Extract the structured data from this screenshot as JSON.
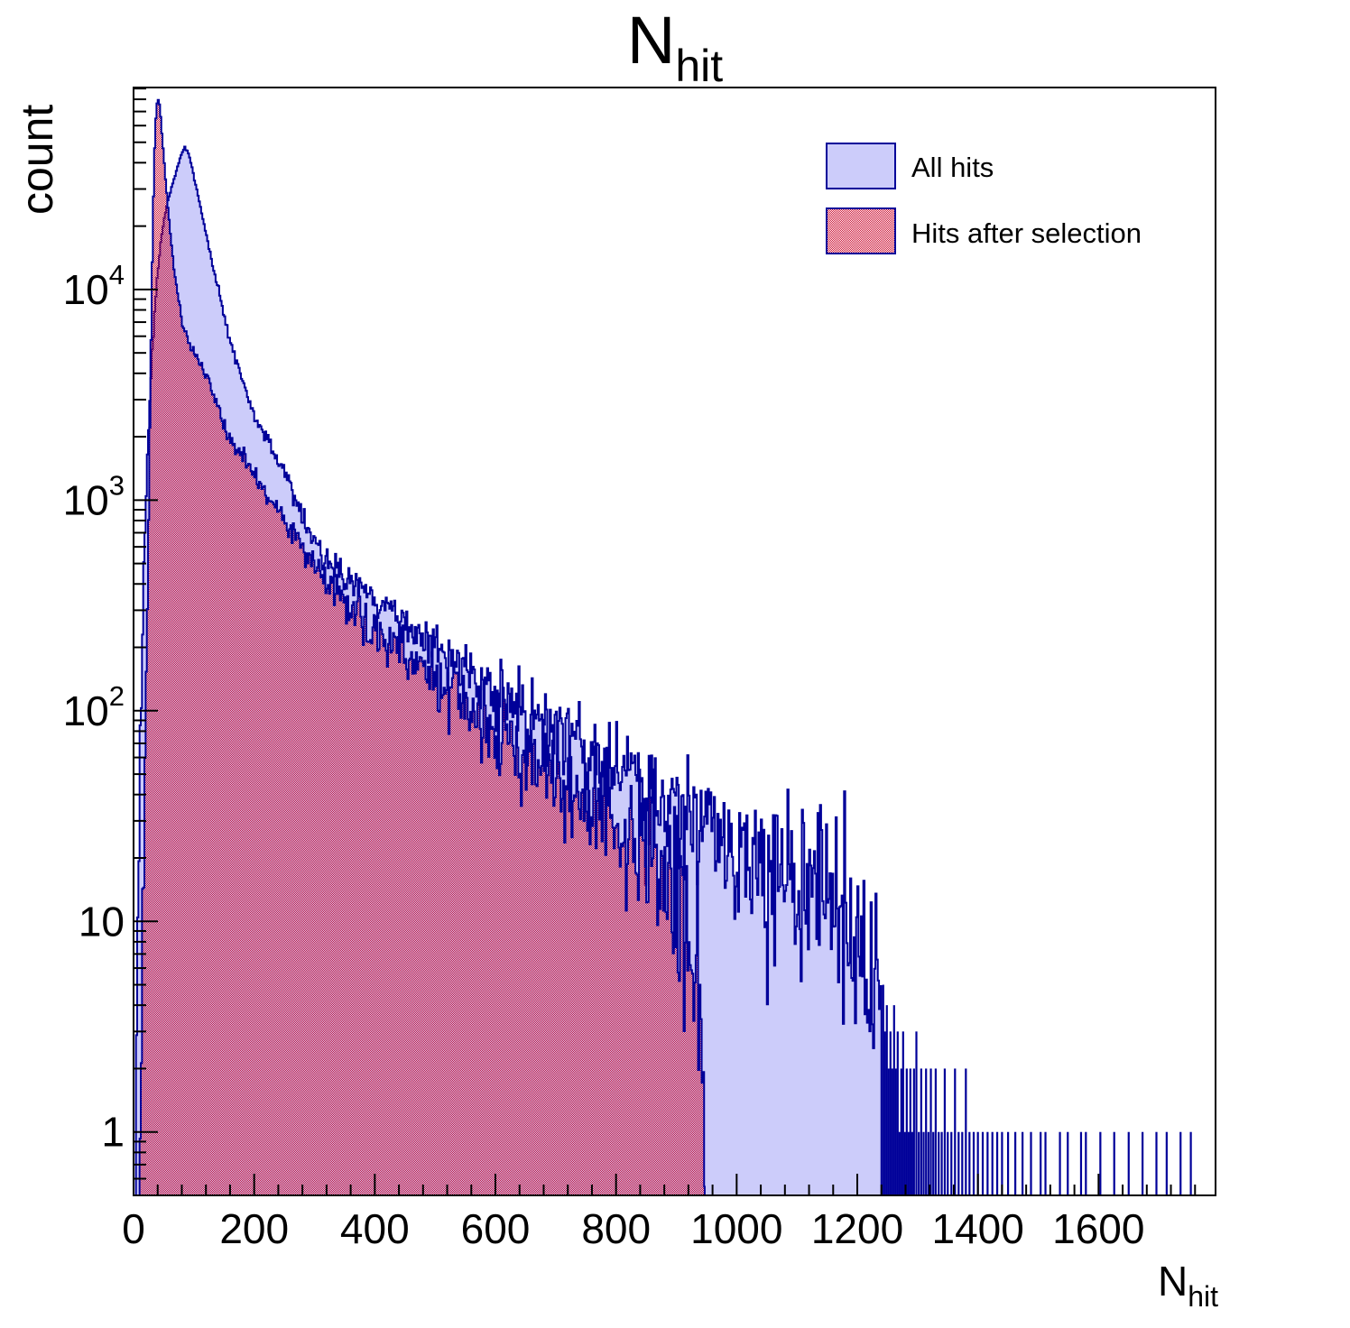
{
  "title": {
    "main": "N",
    "sub": "hit"
  },
  "axes": {
    "x": {
      "title_main": "N",
      "title_sub": "hit"
    },
    "y": {
      "title": "count"
    }
  },
  "legend": {
    "items": [
      {
        "label": "All hits",
        "style": "solid"
      },
      {
        "label": "Hits after selection",
        "style": "checker"
      }
    ]
  },
  "colors": {
    "outline_navy": "#000099",
    "all_hits_fill": "#ccccfa",
    "selection_red": "#cc1034",
    "axis_black": "#000000"
  },
  "chart_data": {
    "type": "area",
    "title": "N_hit",
    "xlabel": "N_hit",
    "ylabel": "count",
    "x_axis": {
      "min": 0,
      "max": 1794,
      "major_ticks": [
        0,
        200,
        400,
        600,
        800,
        1000,
        1200,
        1400,
        1600
      ],
      "minor_step": 40
    },
    "y_axis": {
      "scale": "log",
      "min": 0.5,
      "max": 91000,
      "major_ticks": [
        1,
        10,
        100,
        1000,
        10000
      ]
    },
    "bin_width": 2,
    "legend_position": "top-right",
    "grid": false,
    "noise": {
      "seed": 9,
      "coeff": 0.85,
      "max_sigma": 0.28
    },
    "series": [
      {
        "name": "All hits",
        "fill": "solid",
        "anchors": [
          [
            4,
            0.7
          ],
          [
            6,
            3
          ],
          [
            8,
            12
          ],
          [
            10,
            40
          ],
          [
            13,
            130
          ],
          [
            16,
            350
          ],
          [
            20,
            900
          ],
          [
            24,
            1900
          ],
          [
            28,
            3400
          ],
          [
            32,
            5600
          ],
          [
            36,
            8500
          ],
          [
            40,
            12000
          ],
          [
            45,
            16500
          ],
          [
            50,
            21000
          ],
          [
            55,
            25000
          ],
          [
            60,
            28500
          ],
          [
            64,
            31000
          ],
          [
            68,
            34000
          ],
          [
            72,
            37500
          ],
          [
            76,
            41000
          ],
          [
            80,
            44500
          ],
          [
            85,
            47500
          ],
          [
            90,
            45500
          ],
          [
            95,
            40000
          ],
          [
            100,
            34500
          ],
          [
            106,
            28500
          ],
          [
            112,
            23500
          ],
          [
            118,
            19500
          ],
          [
            124,
            16200
          ],
          [
            130,
            13500
          ],
          [
            137,
            11000
          ],
          [
            144,
            9000
          ],
          [
            152,
            7200
          ],
          [
            160,
            5800
          ],
          [
            170,
            4600
          ],
          [
            181,
            3600
          ],
          [
            192,
            2950
          ],
          [
            205,
            2400
          ],
          [
            220,
            1950
          ],
          [
            240,
            1520
          ],
          [
            260,
            1200
          ],
          [
            281,
            820
          ],
          [
            302,
            620
          ],
          [
            330,
            500
          ],
          [
            360,
            420
          ],
          [
            400,
            330
          ],
          [
            440,
            270
          ],
          [
            480,
            225
          ],
          [
            520,
            185
          ],
          [
            560,
            152
          ],
          [
            600,
            125
          ],
          [
            650,
            100
          ],
          [
            700,
            81
          ],
          [
            750,
            66
          ],
          [
            800,
            53
          ],
          [
            850,
            43
          ],
          [
            900,
            34
          ],
          [
            950,
            27
          ],
          [
            1000,
            23
          ],
          [
            1050,
            20
          ],
          [
            1100,
            17.5
          ],
          [
            1140,
            15
          ],
          [
            1175,
            11
          ],
          [
            1205,
            7.5
          ],
          [
            1225,
            5
          ],
          [
            1240,
            3.5
          ]
        ],
        "tail_spikes": [
          [
            1243,
            5
          ],
          [
            1246,
            3
          ],
          [
            1249,
            4
          ],
          [
            1252,
            2
          ],
          [
            1255,
            3
          ],
          [
            1258,
            2
          ],
          [
            1261,
            4
          ],
          [
            1264,
            2
          ],
          [
            1267,
            3
          ],
          [
            1270,
            1
          ],
          [
            1273,
            2
          ],
          [
            1276,
            3
          ],
          [
            1279,
            1
          ],
          [
            1282,
            2
          ],
          [
            1285,
            1
          ],
          [
            1288,
            2
          ],
          [
            1291,
            1
          ],
          [
            1294,
            2
          ],
          [
            1298,
            3
          ],
          [
            1302,
            1
          ],
          [
            1306,
            2
          ],
          [
            1310,
            1
          ],
          [
            1314,
            2
          ],
          [
            1318,
            1
          ],
          [
            1322,
            2
          ],
          [
            1326,
            1
          ],
          [
            1330,
            2
          ],
          [
            1335,
            1
          ],
          [
            1340,
            1
          ],
          [
            1345,
            2
          ],
          [
            1350,
            1
          ],
          [
            1356,
            1
          ],
          [
            1362,
            2
          ],
          [
            1368,
            1
          ],
          [
            1374,
            1
          ],
          [
            1380,
            2
          ],
          [
            1386,
            1
          ],
          [
            1393,
            1
          ],
          [
            1400,
            1
          ],
          [
            1408,
            1
          ],
          [
            1416,
            1
          ],
          [
            1424,
            1
          ],
          [
            1432,
            1
          ],
          [
            1440,
            1
          ],
          [
            1450,
            1
          ],
          [
            1462,
            1
          ],
          [
            1474,
            1
          ],
          [
            1488,
            1
          ],
          [
            1504,
            1
          ],
          [
            1512,
            1
          ],
          [
            1536,
            1
          ],
          [
            1549,
            1
          ],
          [
            1571,
            1
          ],
          [
            1579,
            1
          ],
          [
            1603,
            1
          ],
          [
            1626,
            1
          ],
          [
            1650,
            1
          ],
          [
            1673,
            1
          ],
          [
            1696,
            1
          ],
          [
            1713,
            1
          ],
          [
            1736,
            1
          ],
          [
            1753,
            1
          ]
        ]
      },
      {
        "name": "Hits after selection",
        "fill": "checker",
        "anchors": [
          [
            10,
            0.6
          ],
          [
            12,
            1.5
          ],
          [
            14,
            4
          ],
          [
            16,
            10
          ],
          [
            18,
            28
          ],
          [
            20,
            75
          ],
          [
            22,
            200
          ],
          [
            24,
            520
          ],
          [
            26,
            1400
          ],
          [
            28,
            3600
          ],
          [
            30,
            9000
          ],
          [
            32,
            20000
          ],
          [
            34,
            38000
          ],
          [
            36,
            58000
          ],
          [
            38,
            72000
          ],
          [
            40,
            81000
          ],
          [
            42,
            79000
          ],
          [
            44,
            71000
          ],
          [
            46,
            61000
          ],
          [
            48,
            51000
          ],
          [
            50,
            43000
          ],
          [
            53,
            33500
          ],
          [
            56,
            26500
          ],
          [
            59,
            21000
          ],
          [
            62,
            17000
          ],
          [
            66,
            13300
          ],
          [
            70,
            10800
          ],
          [
            75,
            8700
          ],
          [
            80,
            7300
          ],
          [
            86,
            6200
          ],
          [
            92,
            5500
          ],
          [
            100,
            4950
          ],
          [
            110,
            4400
          ],
          [
            122,
            3850
          ],
          [
            135,
            3000
          ],
          [
            150,
            2200
          ],
          [
            165,
            1900
          ],
          [
            180,
            1650
          ],
          [
            200,
            1350
          ],
          [
            225,
            1020
          ],
          [
            250,
            800
          ],
          [
            281,
            600
          ],
          [
            302,
            470
          ],
          [
            330,
            380
          ],
          [
            360,
            310
          ],
          [
            400,
            245
          ],
          [
            440,
            198
          ],
          [
            480,
            160
          ],
          [
            520,
            128
          ],
          [
            560,
            100
          ],
          [
            600,
            80
          ],
          [
            650,
            62
          ],
          [
            700,
            49
          ],
          [
            750,
            38
          ],
          [
            800,
            30
          ],
          [
            840,
            24
          ],
          [
            870,
            20
          ],
          [
            895,
            15
          ],
          [
            915,
            10
          ],
          [
            928,
            6.5
          ],
          [
            938,
            3.5
          ],
          [
            944,
            1.5
          ],
          [
            947,
            0.7
          ]
        ],
        "tail_spikes": []
      }
    ]
  }
}
